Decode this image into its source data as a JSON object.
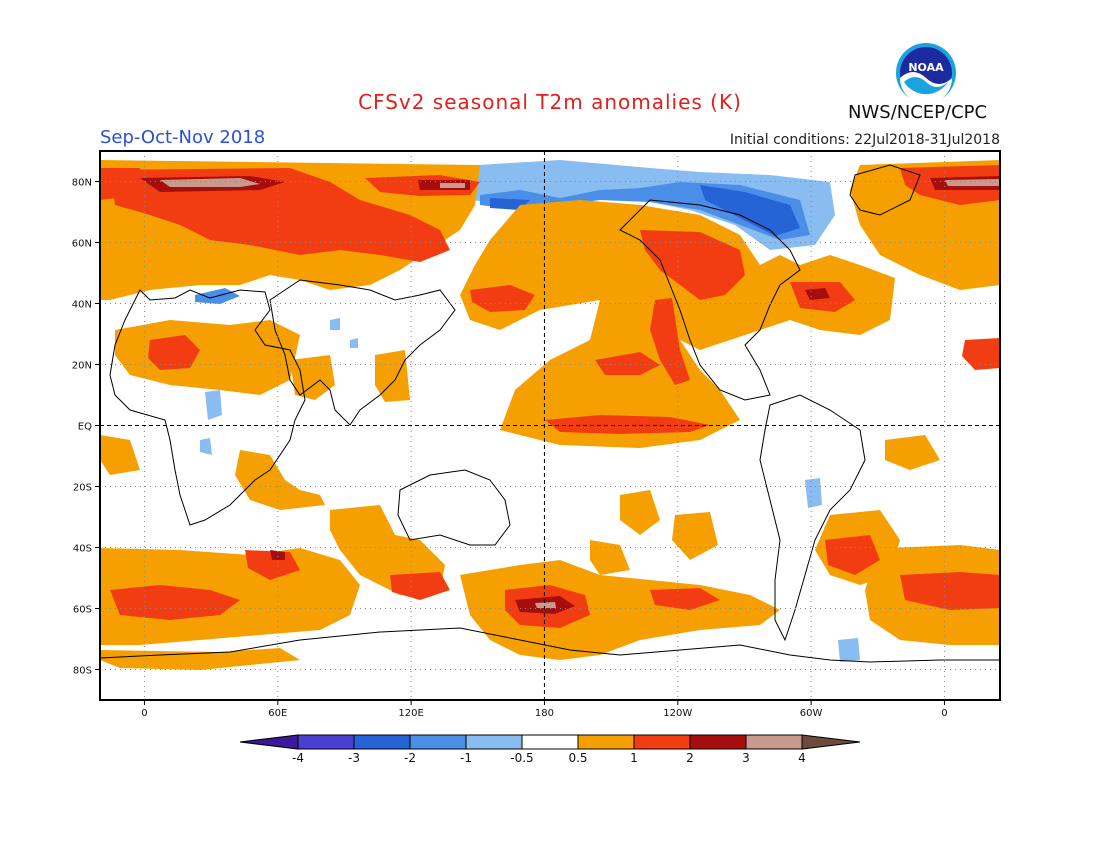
{
  "header": {
    "title": "CFSv2 seasonal T2m anomalies (K)",
    "season": "Sep-Oct-Nov 2018",
    "initial_conditions": "Initial conditions: 22Jul2018-31Jul2018",
    "agency": "NWS/NCEP/CPC",
    "logo_text": "NOAA"
  },
  "axes": {
    "lat_labels": [
      "80N",
      "60N",
      "40N",
      "20N",
      "EQ",
      "20S",
      "40S",
      "60S",
      "80S"
    ],
    "lat_values": [
      80,
      60,
      40,
      20,
      0,
      -20,
      -40,
      -60,
      -80
    ],
    "lon_labels": [
      "0",
      "60E",
      "120E",
      "180",
      "120W",
      "60W",
      "0"
    ],
    "lon_values": [
      0,
      60,
      120,
      180,
      240,
      300,
      360
    ],
    "lon_range": [
      -20,
      385
    ],
    "lat_range": [
      -90,
      90
    ]
  },
  "colorbar": {
    "labels": [
      "-4",
      "-3",
      "-2",
      "-1",
      "-0.5",
      "0.5",
      "1",
      "2",
      "3",
      "4"
    ],
    "colors": [
      "#3a1a9a",
      "#4a3fd0",
      "#2563d6",
      "#4a8ee8",
      "#89bdf2",
      "#ffffff",
      "#f5a000",
      "#f23d12",
      "#a60e0e",
      "#c79a8c",
      "#6e4a3e"
    ]
  },
  "colors": {
    "warm_light": "#f5a000",
    "warm": "#f23d12",
    "warm_dark": "#a60e0e",
    "warm_extreme": "#c79a8c",
    "cool_light": "#89bdf2",
    "cool": "#4a8ee8",
    "cool_dark": "#2563d6"
  }
}
